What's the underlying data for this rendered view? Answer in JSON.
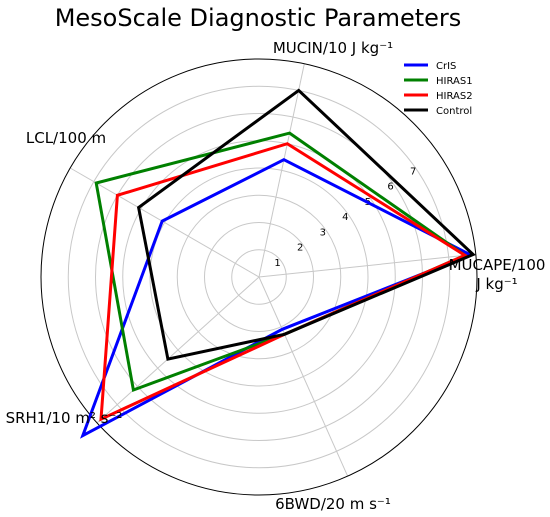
{
  "chart_data": {
    "type": "radar",
    "title": "MesoScale Diagnostic Parameters",
    "axes": [
      {
        "label_lines": [
          "MUCAPE/100",
          "J kg⁻¹"
        ]
      },
      {
        "label_lines": [
          "MUCIN/10 J kg⁻¹"
        ]
      },
      {
        "label_lines": [
          "LCL/100 m"
        ]
      },
      {
        "label_lines": [
          "SRH1/10 m² s⁻²"
        ]
      },
      {
        "label_lines": [
          "6BWD/20 m s⁻¹"
        ]
      }
    ],
    "radial_ticks": [
      1,
      2,
      3,
      4,
      5,
      6,
      7
    ],
    "radial_max": 8,
    "grid": true,
    "legend_position": "top-right",
    "series": [
      {
        "name": "CrIS",
        "color": "#0000ff",
        "values": [
          7.8,
          4.4,
          4.1,
          8.7,
          2.1
        ]
      },
      {
        "name": "HIRAS1",
        "color": "#008000",
        "values": [
          7.6,
          5.4,
          6.9,
          6.2,
          2.3
        ]
      },
      {
        "name": "HIRAS2",
        "color": "#ff0000",
        "values": [
          7.6,
          5.0,
          6.0,
          7.8,
          2.3
        ]
      },
      {
        "name": "Control",
        "color": "#000000",
        "values": [
          7.9,
          7.0,
          5.1,
          4.5,
          2.3
        ]
      }
    ]
  }
}
